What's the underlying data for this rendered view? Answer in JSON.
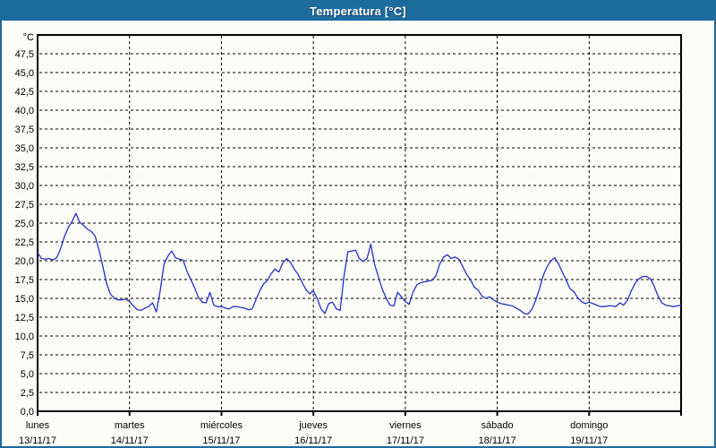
{
  "window": {
    "title": "Temperatura [°C]"
  },
  "colors": {
    "titlebar": "#1e6b9e",
    "window_border": "#1d6b9e",
    "line": "#2330c8",
    "axis": "#000000",
    "grid": "#000000",
    "label_text": "#000000",
    "plot_background": "#fcfdf9"
  },
  "chart_data": {
    "type": "line",
    "title": "Temperatura [°C]",
    "ylabel": "°C",
    "y_unit_label": "°C",
    "ylim": [
      0,
      50
    ],
    "ytick_step": 2.5,
    "ytick_labels": [
      "0,0",
      "2,5",
      "5,0",
      "7,5",
      "10,0",
      "12,5",
      "15,0",
      "17,5",
      "20,0",
      "22,5",
      "25,0",
      "27,5",
      "30,0",
      "32,5",
      "35,0",
      "37,5",
      "40,0",
      "42,5",
      "45,0",
      "47,5"
    ],
    "grid": "dashed",
    "legend_position": "none",
    "x_days": [
      {
        "name": "lunes",
        "date": "13/11/17"
      },
      {
        "name": "martes",
        "date": "14/11/17"
      },
      {
        "name": "miércoles",
        "date": "15/11/17"
      },
      {
        "name": "jueves",
        "date": "16/11/17"
      },
      {
        "name": "viernes",
        "date": "17/11/17"
      },
      {
        "name": "sábado",
        "date": "18/11/17"
      },
      {
        "name": "domingo",
        "date": "19/11/17"
      }
    ],
    "series": [
      {
        "unit": "°C",
        "interval_hours": 1,
        "values": [
          21.1,
          20.3,
          20.2,
          20.3,
          20.1,
          20.4,
          21.6,
          23.2,
          24.4,
          25.2,
          26.3,
          25.1,
          24.7,
          24.2,
          23.9,
          23.3,
          21.5,
          19.3,
          17.0,
          15.6,
          15.0,
          14.8,
          14.8,
          14.9,
          14.6,
          14.0,
          13.5,
          13.4,
          13.7,
          13.9,
          14.4,
          13.2,
          16.0,
          19.5,
          20.6,
          21.3,
          20.4,
          20.2,
          20.1,
          18.6,
          17.5,
          16.4,
          15.1,
          14.5,
          14.4,
          15.8,
          14.1,
          13.9,
          13.9,
          13.7,
          13.6,
          13.9,
          13.9,
          13.8,
          13.7,
          13.5,
          13.6,
          14.8,
          16.0,
          16.9,
          17.4,
          18.3,
          18.9,
          18.5,
          19.7,
          20.3,
          19.8,
          18.9,
          18.2,
          17.2,
          16.2,
          15.6,
          16.0,
          15.0,
          13.6,
          13.0,
          14.3,
          14.5,
          13.6,
          13.4,
          18.0,
          21.2,
          21.3,
          21.4,
          20.3,
          19.9,
          20.3,
          22.2,
          19.5,
          17.8,
          16.2,
          15.0,
          14.1,
          14.0,
          15.8,
          15.2,
          14.6,
          14.2,
          15.8,
          16.8,
          17.1,
          17.2,
          17.3,
          17.4,
          18.0,
          19.6,
          20.5,
          20.8,
          20.3,
          20.5,
          20.2,
          19.2,
          18.2,
          17.5,
          16.5,
          16.1,
          15.3,
          15.0,
          15.2,
          14.8,
          14.5,
          14.3,
          14.2,
          14.1,
          14.0,
          13.7,
          13.4,
          13.0,
          12.9,
          13.5,
          14.7,
          16.2,
          18.0,
          19.2,
          20.0,
          20.4,
          19.6,
          18.5,
          17.4,
          16.3,
          15.9,
          15.1,
          14.6,
          14.3,
          14.5,
          14.3,
          14.1,
          13.9,
          13.9,
          14.0,
          14.0,
          13.9,
          14.4,
          14.1,
          14.8,
          16.0,
          17.0,
          17.6,
          17.9,
          17.9,
          17.6,
          16.6,
          15.3,
          14.4,
          14.1,
          14.0,
          13.9,
          14.0,
          14.1
        ]
      }
    ]
  }
}
